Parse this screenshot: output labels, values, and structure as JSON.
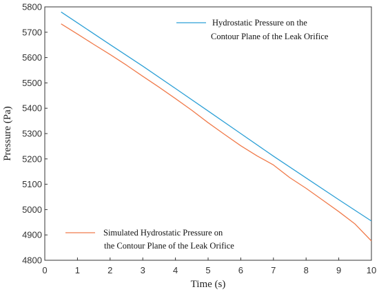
{
  "chart_data": {
    "type": "line",
    "title": "",
    "xlabel": "Time (s)",
    "ylabel": "Pressure (Pa)",
    "xlim": [
      0,
      10
    ],
    "ylim": [
      4800,
      5800
    ],
    "xticks": [
      "0",
      "1",
      "2",
      "3",
      "4",
      "5",
      "6",
      "7",
      "8",
      "9",
      "10"
    ],
    "yticks": [
      "4800",
      "4900",
      "5000",
      "5100",
      "5200",
      "5300",
      "5400",
      "5500",
      "5600",
      "5700",
      "5800"
    ],
    "grid": false,
    "series": [
      {
        "name_lines": [
          "Hydrostatic Pressure on the",
          "Contour Plane of the Leak Orifice"
        ],
        "color": "#2b9fd6",
        "x": [
          0.5,
          1,
          2,
          3,
          4,
          5,
          6,
          7,
          8,
          9,
          10
        ],
        "y": [
          5780,
          5737,
          5651,
          5566,
          5478,
          5389,
          5300,
          5211,
          5125,
          5039,
          4955
        ]
      },
      {
        "name_lines": [
          "Simulated Hydrostatic Pressure on",
          "the Contour Plane of the Leak Orifice"
        ],
        "color": "#f07a4a",
        "x": [
          0.5,
          1,
          1.5,
          2,
          2.5,
          3,
          3.5,
          4,
          4.5,
          5,
          5.5,
          6,
          6.5,
          7,
          7.5,
          8,
          8.5,
          9,
          9.5,
          10
        ],
        "y": [
          5733,
          5693,
          5652,
          5612,
          5570,
          5526,
          5483,
          5438,
          5392,
          5343,
          5297,
          5252,
          5212,
          5176,
          5126,
          5084,
          5038,
          4992,
          4943,
          4876
        ]
      }
    ]
  }
}
